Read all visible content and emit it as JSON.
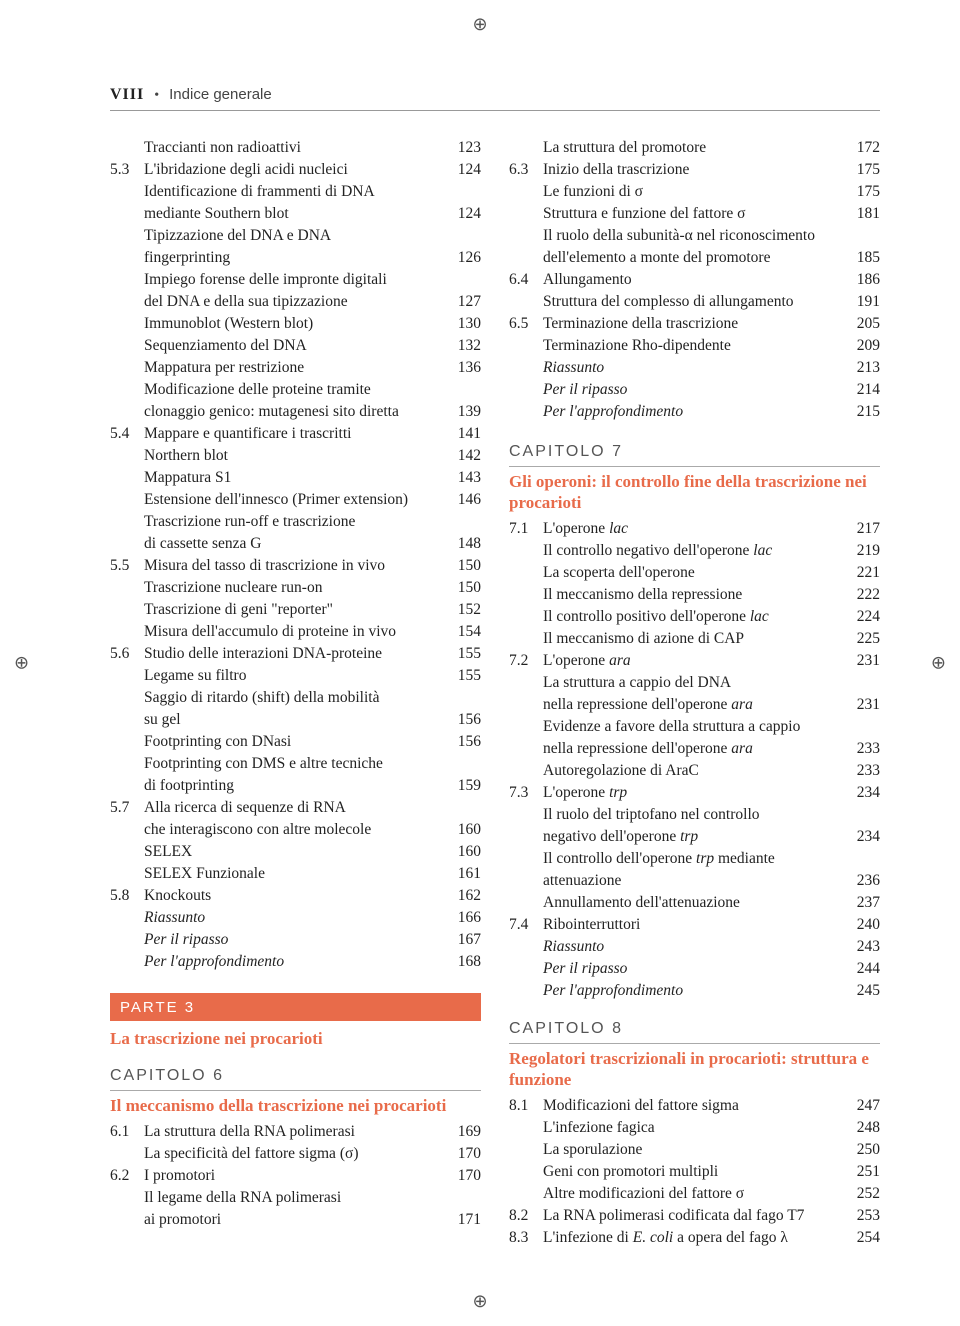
{
  "header": {
    "page": "VIII",
    "bullet": "•",
    "title": "Indice generale"
  },
  "crop_glyph": "⊕",
  "left": {
    "rows": [
      {
        "n": "",
        "t": "Traccianti non radioattivi",
        "p": "123"
      },
      {
        "n": "5.3",
        "t": "L'ibridazione degli acidi nucleici",
        "p": "124"
      },
      {
        "n": "",
        "t": "Identificazione di frammenti di DNA",
        "p": ""
      },
      {
        "n": "",
        "t": "mediante Southern blot",
        "p": "124"
      },
      {
        "n": "",
        "t": "Tipizzazione del DNA e DNA",
        "p": ""
      },
      {
        "n": "",
        "t": "fingerprinting",
        "p": "126"
      },
      {
        "n": "",
        "t": "Impiego forense delle impronte digitali",
        "p": ""
      },
      {
        "n": "",
        "t": "del DNA e della sua tipizzazione",
        "p": "127"
      },
      {
        "n": "",
        "t": "Immunoblot (Western blot)",
        "p": "130"
      },
      {
        "n": "",
        "t": "Sequenziamento del DNA",
        "p": "132"
      },
      {
        "n": "",
        "t": "Mappatura per restrizione",
        "p": "136"
      },
      {
        "n": "",
        "t": "Modificazione delle proteine tramite",
        "p": ""
      },
      {
        "n": "",
        "t": "clonaggio genico: mutagenesi sito diretta",
        "p": "139"
      },
      {
        "n": "5.4",
        "t": "Mappare e quantificare i trascritti",
        "p": "141"
      },
      {
        "n": "",
        "t": "Northern blot",
        "p": "142"
      },
      {
        "n": "",
        "t": "Mappatura S1",
        "p": "143"
      },
      {
        "n": "",
        "t": "Estensione dell'innesco (Primer extension)",
        "p": "146"
      },
      {
        "n": "",
        "t": "Trascrizione run-off e trascrizione",
        "p": ""
      },
      {
        "n": "",
        "t": "di cassette senza G",
        "p": "148"
      },
      {
        "n": "5.5",
        "t": "Misura del tasso di trascrizione in vivo",
        "p": "150"
      },
      {
        "n": "",
        "t": "Trascrizione nucleare run-on",
        "p": "150"
      },
      {
        "n": "",
        "t": "Trascrizione di geni \"reporter\"",
        "p": "152"
      },
      {
        "n": "",
        "t": "Misura dell'accumulo di proteine in vivo",
        "p": "154"
      },
      {
        "n": "5.6",
        "t": "Studio delle interazioni DNA-proteine",
        "p": "155"
      },
      {
        "n": "",
        "t": "Legame su filtro",
        "p": "155"
      },
      {
        "n": "",
        "t": "Saggio di ritardo (shift) della mobilità",
        "p": ""
      },
      {
        "n": "",
        "t": "su gel",
        "p": "156"
      },
      {
        "n": "",
        "t": "Footprinting con DNasi",
        "p": "156"
      },
      {
        "n": "",
        "t": "Footprinting con DMS e altre tecniche",
        "p": ""
      },
      {
        "n": "",
        "t": "di footprinting",
        "p": "159"
      },
      {
        "n": "5.7",
        "t": "Alla ricerca di sequenze di RNA",
        "p": ""
      },
      {
        "n": "",
        "t": "che interagiscono con altre molecole",
        "p": "160"
      },
      {
        "n": "",
        "t": "SELEX",
        "p": "160"
      },
      {
        "n": "",
        "t": "SELEX Funzionale",
        "p": "161"
      },
      {
        "n": "5.8",
        "t": "Knockouts",
        "p": "162"
      },
      {
        "n": "",
        "t": "Riassunto",
        "p": "166",
        "i": true
      },
      {
        "n": "",
        "t": "Per il ripasso",
        "p": "167",
        "i": true
      },
      {
        "n": "",
        "t": "Per l'approfondimento",
        "p": "168",
        "i": true
      }
    ],
    "part": {
      "label": "PARTE 3",
      "sub": "La trascrizione nei procarioti"
    },
    "ch6": {
      "label": "CAPITOLO 6",
      "sub": "Il meccanismo della trascrizione nei procarioti",
      "rows": [
        {
          "n": "6.1",
          "t": "La struttura della RNA polimerasi",
          "p": "169"
        },
        {
          "n": "",
          "t": "La specificità del fattore sigma (σ)",
          "p": "170"
        },
        {
          "n": "6.2",
          "t": "I promotori",
          "p": "170"
        },
        {
          "n": "",
          "t": "Il legame della RNA polimerasi",
          "p": ""
        },
        {
          "n": "",
          "t": "ai promotori",
          "p": "171"
        }
      ]
    }
  },
  "right": {
    "top_rows": [
      {
        "n": "",
        "t": "La struttura del promotore",
        "p": "172"
      },
      {
        "n": "6.3",
        "t": "Inizio della trascrizione",
        "p": "175"
      },
      {
        "n": "",
        "t": "Le funzioni di σ",
        "p": "175"
      },
      {
        "n": "",
        "t": "Struttura e funzione del fattore σ",
        "p": "181"
      },
      {
        "n": "",
        "t": "Il ruolo della subunità-α nel riconoscimento",
        "p": ""
      },
      {
        "n": "",
        "t": "dell'elemento a monte del promotore",
        "p": "185"
      },
      {
        "n": "6.4",
        "t": "Allungamento",
        "p": "186"
      },
      {
        "n": "",
        "t": "Struttura del complesso di allungamento",
        "p": "191"
      },
      {
        "n": "6.5",
        "t": "Terminazione della trascrizione",
        "p": "205"
      },
      {
        "n": "",
        "t": "Terminazione Rho-dipendente",
        "p": "209"
      },
      {
        "n": "",
        "t": "Riassunto",
        "p": "213",
        "i": true
      },
      {
        "n": "",
        "t": "Per il ripasso",
        "p": "214",
        "i": true
      },
      {
        "n": "",
        "t": "Per l'approfondimento",
        "p": "215",
        "i": true
      }
    ],
    "ch7": {
      "label": "CAPITOLO 7",
      "sub": "Gli operoni: il controllo fine della trascrizione nei procarioti",
      "rows": [
        {
          "n": "7.1",
          "html": "L'operone <i>lac</i>",
          "p": "217"
        },
        {
          "n": "",
          "html": "Il controllo negativo dell'operone <i>lac</i>",
          "p": "219"
        },
        {
          "n": "",
          "t": "La scoperta dell'operone",
          "p": "221"
        },
        {
          "n": "",
          "t": "Il meccanismo della repressione",
          "p": "222"
        },
        {
          "n": "",
          "html": "Il controllo positivo dell'operone <i>lac</i>",
          "p": "224"
        },
        {
          "n": "",
          "t": "Il meccanismo di azione di CAP",
          "p": "225"
        },
        {
          "n": "7.2",
          "html": "L'operone <i>ara</i>",
          "p": "231"
        },
        {
          "n": "",
          "t": "La struttura a cappio del DNA",
          "p": ""
        },
        {
          "n": "",
          "html": "nella repressione dell'operone <i>ara</i>",
          "p": "231"
        },
        {
          "n": "",
          "t": "Evidenze a favore della struttura a cappio",
          "p": ""
        },
        {
          "n": "",
          "html": "nella repressione dell'operone <i>ara</i>",
          "p": "233"
        },
        {
          "n": "",
          "t": "Autoregolazione di AraC",
          "p": "233"
        },
        {
          "n": "7.3",
          "html": "L'operone <i>trp</i>",
          "p": "234"
        },
        {
          "n": "",
          "t": "Il ruolo del triptofano nel controllo",
          "p": ""
        },
        {
          "n": "",
          "html": "negativo dell'operone <i>trp</i>",
          "p": "234"
        },
        {
          "n": "",
          "html": "Il controllo dell'operone <i>trp</i> mediante",
          "p": ""
        },
        {
          "n": "",
          "t": "attenuazione",
          "p": "236"
        },
        {
          "n": "",
          "t": "Annullamento dell'attenuazione",
          "p": "237"
        },
        {
          "n": "7.4",
          "t": "Ribointerruttori",
          "p": "240"
        },
        {
          "n": "",
          "t": "Riassunto",
          "p": "243",
          "i": true
        },
        {
          "n": "",
          "t": "Per il ripasso",
          "p": "244",
          "i": true
        },
        {
          "n": "",
          "t": "Per l'approfondimento",
          "p": "245",
          "i": true
        }
      ]
    },
    "ch8": {
      "label": "CAPITOLO 8",
      "sub": "Regolatori trascrizionali in procarioti: struttura e funzione",
      "rows": [
        {
          "n": "8.1",
          "t": "Modificazioni del fattore sigma",
          "p": "247"
        },
        {
          "n": "",
          "t": "L'infezione fagica",
          "p": "248"
        },
        {
          "n": "",
          "t": "La sporulazione",
          "p": "250"
        },
        {
          "n": "",
          "t": "Geni con promotori multipli",
          "p": "251"
        },
        {
          "n": "",
          "t": "Altre modificazioni del fattore σ",
          "p": "252"
        },
        {
          "n": "8.2",
          "t": "La RNA polimerasi codificata dal fago T7",
          "p": "253"
        },
        {
          "n": "8.3",
          "html": "L'infezione di <i>E. coli</i> a opera del fago λ",
          "p": "254"
        }
      ]
    }
  }
}
